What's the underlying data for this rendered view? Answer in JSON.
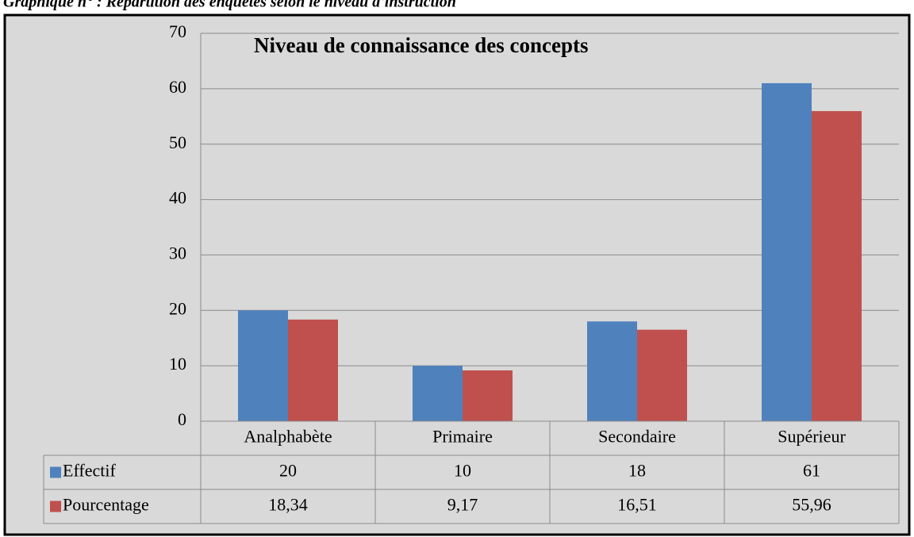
{
  "caption": "Graphique n° : Répartition des enquêtés selon le niveau d'instruction",
  "chart_data": {
    "type": "bar",
    "title": "Niveau de connaissance  des concepts",
    "categories": [
      "Analphabète",
      "Primaire",
      "Secondaire",
      "Supérieur"
    ],
    "series": [
      {
        "name": "Effectif",
        "color": "#4f81bd",
        "values": [
          20,
          10,
          18,
          61
        ]
      },
      {
        "name": "Pourcentage",
        "color": "#c0504d",
        "values": [
          18.34,
          9.17,
          16.51,
          55.96
        ],
        "value_labels": [
          "18,34",
          "9,17",
          "16,51",
          "55,96"
        ]
      }
    ],
    "ylim": [
      0,
      70
    ],
    "yticks": [
      0,
      10,
      20,
      30,
      40,
      50,
      60,
      70
    ],
    "grid": true,
    "data_table": true
  }
}
